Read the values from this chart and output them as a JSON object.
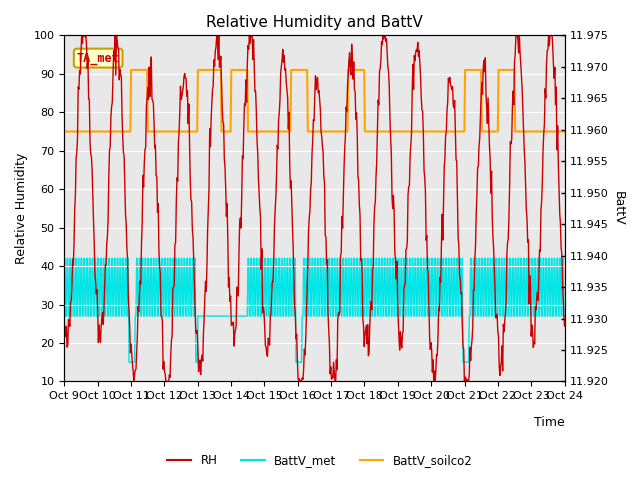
{
  "title": "Relative Humidity and BattV",
  "xlabel": "Time",
  "ylabel_left": "Relative Humidity",
  "ylabel_right": "BattV",
  "annotation_text": "TA_met",
  "x_tick_labels": [
    "Oct 9",
    "Oct 10",
    "Oct 11",
    "Oct 12",
    "Oct 13",
    "Oct 14",
    "Oct 15",
    "Oct 16",
    "Oct 17",
    "Oct 18",
    "Oct 19",
    "Oct 20",
    "Oct 21",
    "Oct 22",
    "Oct 23",
    "Oct 24"
  ],
  "ylim_left": [
    10,
    100
  ],
  "ylim_right": [
    11.92,
    11.975
  ],
  "y_ticks_left": [
    10,
    20,
    30,
    40,
    50,
    60,
    70,
    80,
    90,
    100
  ],
  "y_ticks_right": [
    11.92,
    11.925,
    11.93,
    11.935,
    11.94,
    11.945,
    11.95,
    11.955,
    11.96,
    11.965,
    11.97,
    11.975
  ],
  "fig_bg_color": "#ffffff",
  "plot_bg_color": "#e8e8e8",
  "rh_color": "#cc0000",
  "battv_met_color": "#00e5e5",
  "battv_soilco2_color": "#ffa500",
  "title_fontsize": 11,
  "axis_label_fontsize": 9,
  "tick_fontsize": 8,
  "annotation_bg": "#ffffcc",
  "annotation_edge": "#c8a000",
  "annotation_text_color": "#cc0000"
}
